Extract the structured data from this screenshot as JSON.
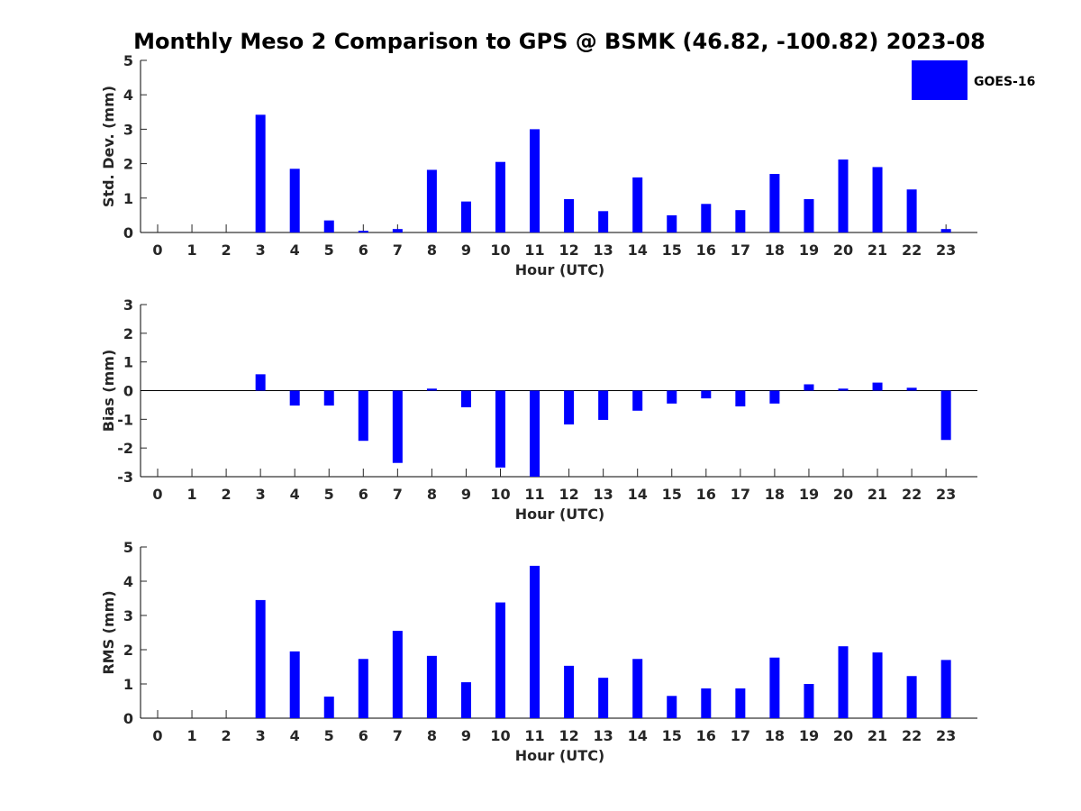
{
  "title": "Monthly Meso 2 Comparison to GPS @ BSMK (46.82, -100.82) 2023-08",
  "legend": {
    "label": "GOES-16",
    "color": "#0000ff",
    "position": "top-right"
  },
  "chart_data": [
    {
      "type": "bar",
      "ylabel": "Std. Dev. (mm)",
      "xlabel": "Hour (UTC)",
      "categories": [
        "0",
        "1",
        "2",
        "3",
        "4",
        "5",
        "6",
        "7",
        "8",
        "9",
        "10",
        "11",
        "12",
        "13",
        "14",
        "15",
        "16",
        "17",
        "18",
        "19",
        "20",
        "21",
        "22",
        "23"
      ],
      "ylim": [
        0,
        5
      ],
      "yticks": [
        0,
        1,
        2,
        3,
        4,
        5
      ],
      "series": [
        {
          "name": "GOES-16",
          "color": "#0000ff",
          "values": [
            0,
            0,
            0,
            3.42,
            1.85,
            0.35,
            0.05,
            0.1,
            1.82,
            0.9,
            2.05,
            3.0,
            0.97,
            0.62,
            1.6,
            0.5,
            0.83,
            0.65,
            1.7,
            0.97,
            2.12,
            1.9,
            1.25,
            0.1
          ]
        }
      ]
    },
    {
      "type": "bar",
      "ylabel": "Bias (mm)",
      "xlabel": "Hour (UTC)",
      "categories": [
        "0",
        "1",
        "2",
        "3",
        "4",
        "5",
        "6",
        "7",
        "8",
        "9",
        "10",
        "11",
        "12",
        "13",
        "14",
        "15",
        "16",
        "17",
        "18",
        "19",
        "20",
        "21",
        "22",
        "23"
      ],
      "ylim": [
        -3,
        3
      ],
      "yticks": [
        -3,
        -2,
        -1,
        0,
        1,
        2,
        3
      ],
      "series": [
        {
          "name": "GOES-16",
          "color": "#0000ff",
          "values": [
            0,
            0,
            0,
            0.57,
            -0.52,
            -0.52,
            -1.75,
            -2.52,
            0.07,
            -0.58,
            -2.68,
            -3.0,
            -1.18,
            -1.02,
            -0.7,
            -0.45,
            -0.27,
            -0.55,
            -0.45,
            0.22,
            0.07,
            0.28,
            0.1,
            -1.72
          ]
        }
      ]
    },
    {
      "type": "bar",
      "ylabel": "RMS (mm)",
      "xlabel": "Hour (UTC)",
      "categories": [
        "0",
        "1",
        "2",
        "3",
        "4",
        "5",
        "6",
        "7",
        "8",
        "9",
        "10",
        "11",
        "12",
        "13",
        "14",
        "15",
        "16",
        "17",
        "18",
        "19",
        "20",
        "21",
        "22",
        "23"
      ],
      "ylim": [
        0,
        5
      ],
      "yticks": [
        0,
        1,
        2,
        3,
        4,
        5
      ],
      "series": [
        {
          "name": "GOES-16",
          "color": "#0000ff",
          "values": [
            0,
            0,
            0,
            3.45,
            1.95,
            0.63,
            1.73,
            2.55,
            1.82,
            1.05,
            3.38,
            4.45,
            1.53,
            1.18,
            1.73,
            0.65,
            0.87,
            0.87,
            1.77,
            1.0,
            2.1,
            1.92,
            1.23,
            1.7
          ]
        }
      ]
    }
  ]
}
